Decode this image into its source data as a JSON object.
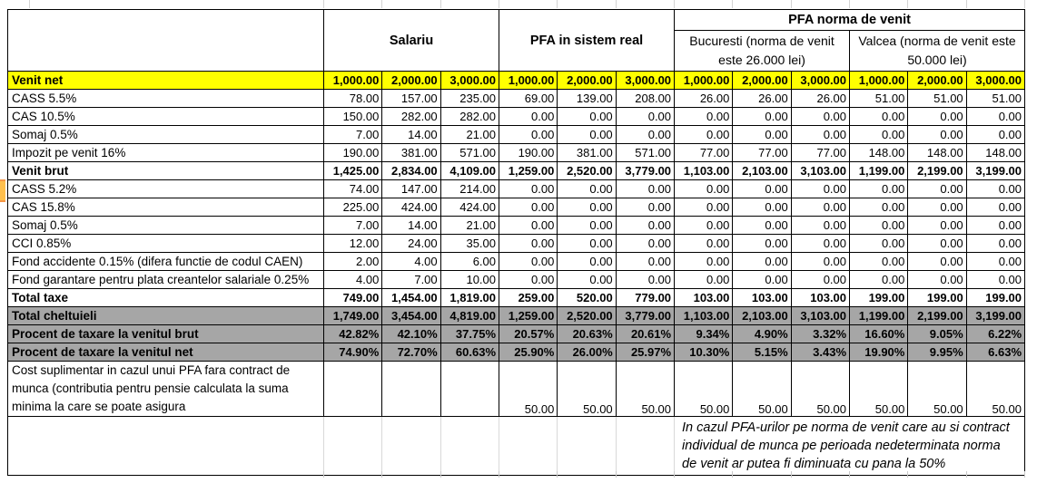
{
  "table": {
    "groups": [
      {
        "label": "Salariu",
        "cols": 3
      },
      {
        "label": "PFA in sistem real",
        "cols": 3
      },
      {
        "label": "PFA norma de venit",
        "cols": 6,
        "subgroups": [
          {
            "label": "Bucuresti (norma de venit este 26.000 lei)",
            "cols": 3
          },
          {
            "label": "Valcea (norma de venit este 50.000 lei)",
            "cols": 3
          }
        ]
      }
    ],
    "rows": [
      {
        "label": "Venit net",
        "style": "yellow",
        "values": [
          "1,000.00",
          "2,000.00",
          "3,000.00",
          "1,000.00",
          "2,000.00",
          "3,000.00",
          "1,000.00",
          "2,000.00",
          "3,000.00",
          "1,000.00",
          "2,000.00",
          "3,000.00"
        ]
      },
      {
        "label": "CASS 5.5%",
        "style": "normal",
        "values": [
          "78.00",
          "157.00",
          "235.00",
          "69.00",
          "139.00",
          "208.00",
          "26.00",
          "26.00",
          "26.00",
          "51.00",
          "51.00",
          "51.00"
        ]
      },
      {
        "label": "CAS 10.5%",
        "style": "normal",
        "values": [
          "150.00",
          "282.00",
          "282.00",
          "0.00",
          "0.00",
          "0.00",
          "0.00",
          "0.00",
          "0.00",
          "0.00",
          "0.00",
          "0.00"
        ]
      },
      {
        "label": "Somaj 0.5%",
        "style": "normal",
        "values": [
          "7.00",
          "14.00",
          "21.00",
          "0.00",
          "0.00",
          "0.00",
          "0.00",
          "0.00",
          "0.00",
          "0.00",
          "0.00",
          "0.00"
        ]
      },
      {
        "label": "Impozit pe venit 16%",
        "style": "normal",
        "values": [
          "190.00",
          "381.00",
          "571.00",
          "190.00",
          "381.00",
          "571.00",
          "77.00",
          "77.00",
          "77.00",
          "148.00",
          "148.00",
          "148.00"
        ]
      },
      {
        "label": "Venit brut",
        "style": "bold",
        "values": [
          "1,425.00",
          "2,834.00",
          "4,109.00",
          "1,259.00",
          "2,520.00",
          "3,779.00",
          "1,103.00",
          "2,103.00",
          "3,103.00",
          "1,199.00",
          "2,199.00",
          "3,199.00"
        ]
      },
      {
        "label": "CASS 5.2%",
        "style": "normal",
        "values": [
          "74.00",
          "147.00",
          "214.00",
          "0.00",
          "0.00",
          "0.00",
          "0.00",
          "0.00",
          "0.00",
          "0.00",
          "0.00",
          "0.00"
        ]
      },
      {
        "label": "CAS 15.8%",
        "style": "normal",
        "values": [
          "225.00",
          "424.00",
          "424.00",
          "0.00",
          "0.00",
          "0.00",
          "0.00",
          "0.00",
          "0.00",
          "0.00",
          "0.00",
          "0.00"
        ]
      },
      {
        "label": "Somaj 0.5%",
        "style": "normal",
        "values": [
          "7.00",
          "14.00",
          "21.00",
          "0.00",
          "0.00",
          "0.00",
          "0.00",
          "0.00",
          "0.00",
          "0.00",
          "0.00",
          "0.00"
        ]
      },
      {
        "label": "CCI 0.85%",
        "style": "normal",
        "values": [
          "12.00",
          "24.00",
          "35.00",
          "0.00",
          "0.00",
          "0.00",
          "0.00",
          "0.00",
          "0.00",
          "0.00",
          "0.00",
          "0.00"
        ]
      },
      {
        "label": "Fond accidente 0.15% (difera functie de codul CAEN)",
        "style": "normal",
        "values": [
          "2.00",
          "4.00",
          "6.00",
          "0.00",
          "0.00",
          "0.00",
          "0.00",
          "0.00",
          "0.00",
          "0.00",
          "0.00",
          "0.00"
        ]
      },
      {
        "label": "Fond garantare pentru plata creantelor salariale 0.25%",
        "style": "normal",
        "values": [
          "4.00",
          "7.00",
          "10.00",
          "0.00",
          "0.00",
          "0.00",
          "0.00",
          "0.00",
          "0.00",
          "0.00",
          "0.00",
          "0.00"
        ]
      },
      {
        "label": "Total taxe",
        "style": "bold",
        "values": [
          "749.00",
          "1,454.00",
          "1,819.00",
          "259.00",
          "520.00",
          "779.00",
          "103.00",
          "103.00",
          "103.00",
          "199.00",
          "199.00",
          "199.00"
        ]
      },
      {
        "label": "Total cheltuieli",
        "style": "gray",
        "values": [
          "1,749.00",
          "3,454.00",
          "4,819.00",
          "1,259.00",
          "2,520.00",
          "3,779.00",
          "1,103.00",
          "2,103.00",
          "3,103.00",
          "1,199.00",
          "2,199.00",
          "3,199.00"
        ]
      },
      {
        "label": "Procent de taxare la venitul brut",
        "style": "gray",
        "values": [
          "42.82%",
          "42.10%",
          "37.75%",
          "20.57%",
          "20.63%",
          "20.61%",
          "9.34%",
          "4.90%",
          "3.32%",
          "16.60%",
          "9.05%",
          "6.22%"
        ]
      },
      {
        "label": "Procent de taxare la venitul net",
        "style": "gray",
        "values": [
          "74.90%",
          "72.70%",
          "60.63%",
          "25.90%",
          "26.00%",
          "25.97%",
          "10.30%",
          "5.15%",
          "3.43%",
          "19.90%",
          "9.95%",
          "6.63%"
        ]
      },
      {
        "label": "Cost suplimentar in cazul unui PFA fara contract de munca (contributia pentru pensie calculata la suma minima la care se poate asigura",
        "style": "cost",
        "values": [
          "",
          "",
          "",
          "50.00",
          "50.00",
          "50.00",
          "50.00",
          "50.00",
          "50.00",
          "50.00",
          "50.00",
          "50.00"
        ]
      }
    ],
    "note": "In cazul PFA-urilor pe norma de venit care au si contract individual de munca pe perioada nedeterminata norma de venit ar putea fi diminuata cu pana la 50%"
  },
  "colors": {
    "highlight_bg": "#FFFF00",
    "summary_bg": "#A6A6A6",
    "border": "#000000"
  }
}
